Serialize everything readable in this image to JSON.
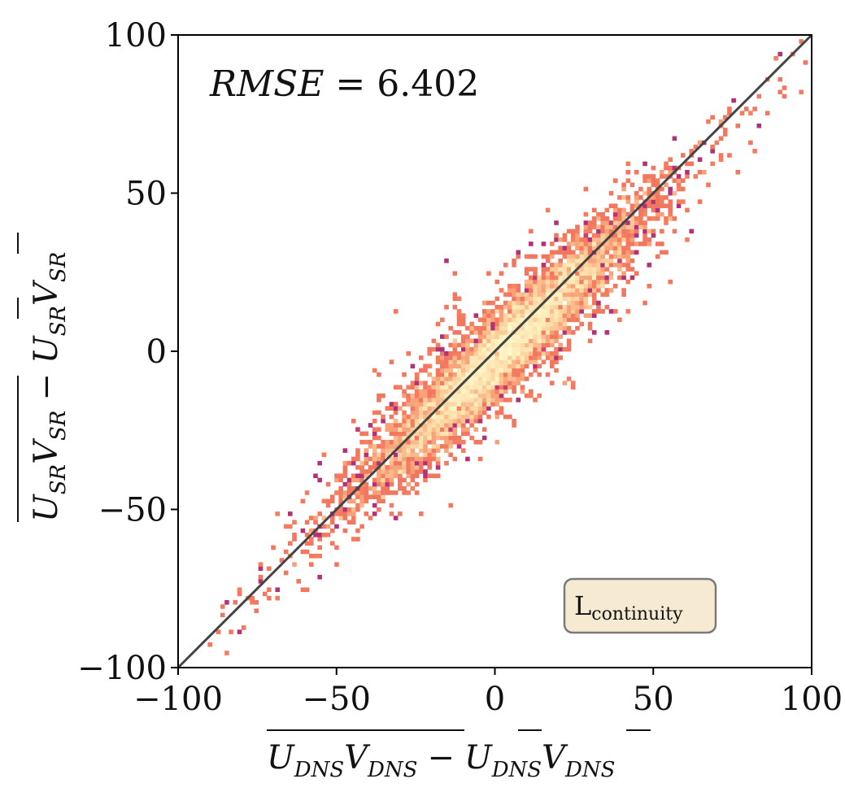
{
  "chart_data": {
    "type": "heatmap",
    "subtype": "2d-histogram scatter density",
    "xlabel": "̅U̅D̅N̅S̅V̅D̅N̅S − ̅UDNS ̅VDNS",
    "xlabel_parts": {
      "term1": "U_DNS V_DNS",
      "minus": "−",
      "term2a": "U",
      "sub2a": "DNS",
      "term2b": "V",
      "sub2b": "DNS",
      "sub1a": "DNS",
      "sub1b": "DNS"
    },
    "ylabel_parts": {
      "term1a": "U",
      "sub1a": "SR",
      "term1b": "V",
      "sub1b": "SR",
      "minus": "−",
      "term2a": "U",
      "sub2a": "SR",
      "term2b": "V",
      "sub2b": "SR"
    },
    "xlim": [
      -100,
      100
    ],
    "ylim": [
      -100,
      100
    ],
    "xticks": [
      -100,
      -50,
      0,
      50,
      100
    ],
    "yticks": [
      -100,
      -50,
      0,
      50,
      100
    ],
    "xtick_labels": [
      "−100",
      "−50",
      "0",
      "50",
      "100"
    ],
    "ytick_labels": [
      "−100",
      "−50",
      "0",
      "50",
      "100"
    ],
    "reference_line": {
      "from": [
        -100,
        -100
      ],
      "to": [
        100,
        100
      ],
      "color": "#444444"
    },
    "annotation": {
      "prefix": "RMSE = ",
      "value": "6.402"
    },
    "legend": {
      "main": "L",
      "sub": "continuity",
      "placement": "bottom-right",
      "facecolor": "#f6ead2"
    },
    "distribution": {
      "slope": 1.0,
      "intercept": -2,
      "spread_along": 28,
      "spread_across": 4.5,
      "n_samples": 60000,
      "bins": 150
    },
    "colormap": "magma_r",
    "colors": [
      "#8e2a7e",
      "#b93577",
      "#e24e67",
      "#f57e5f",
      "#fbb587",
      "#fde7b2",
      "#fffad0"
    ]
  }
}
